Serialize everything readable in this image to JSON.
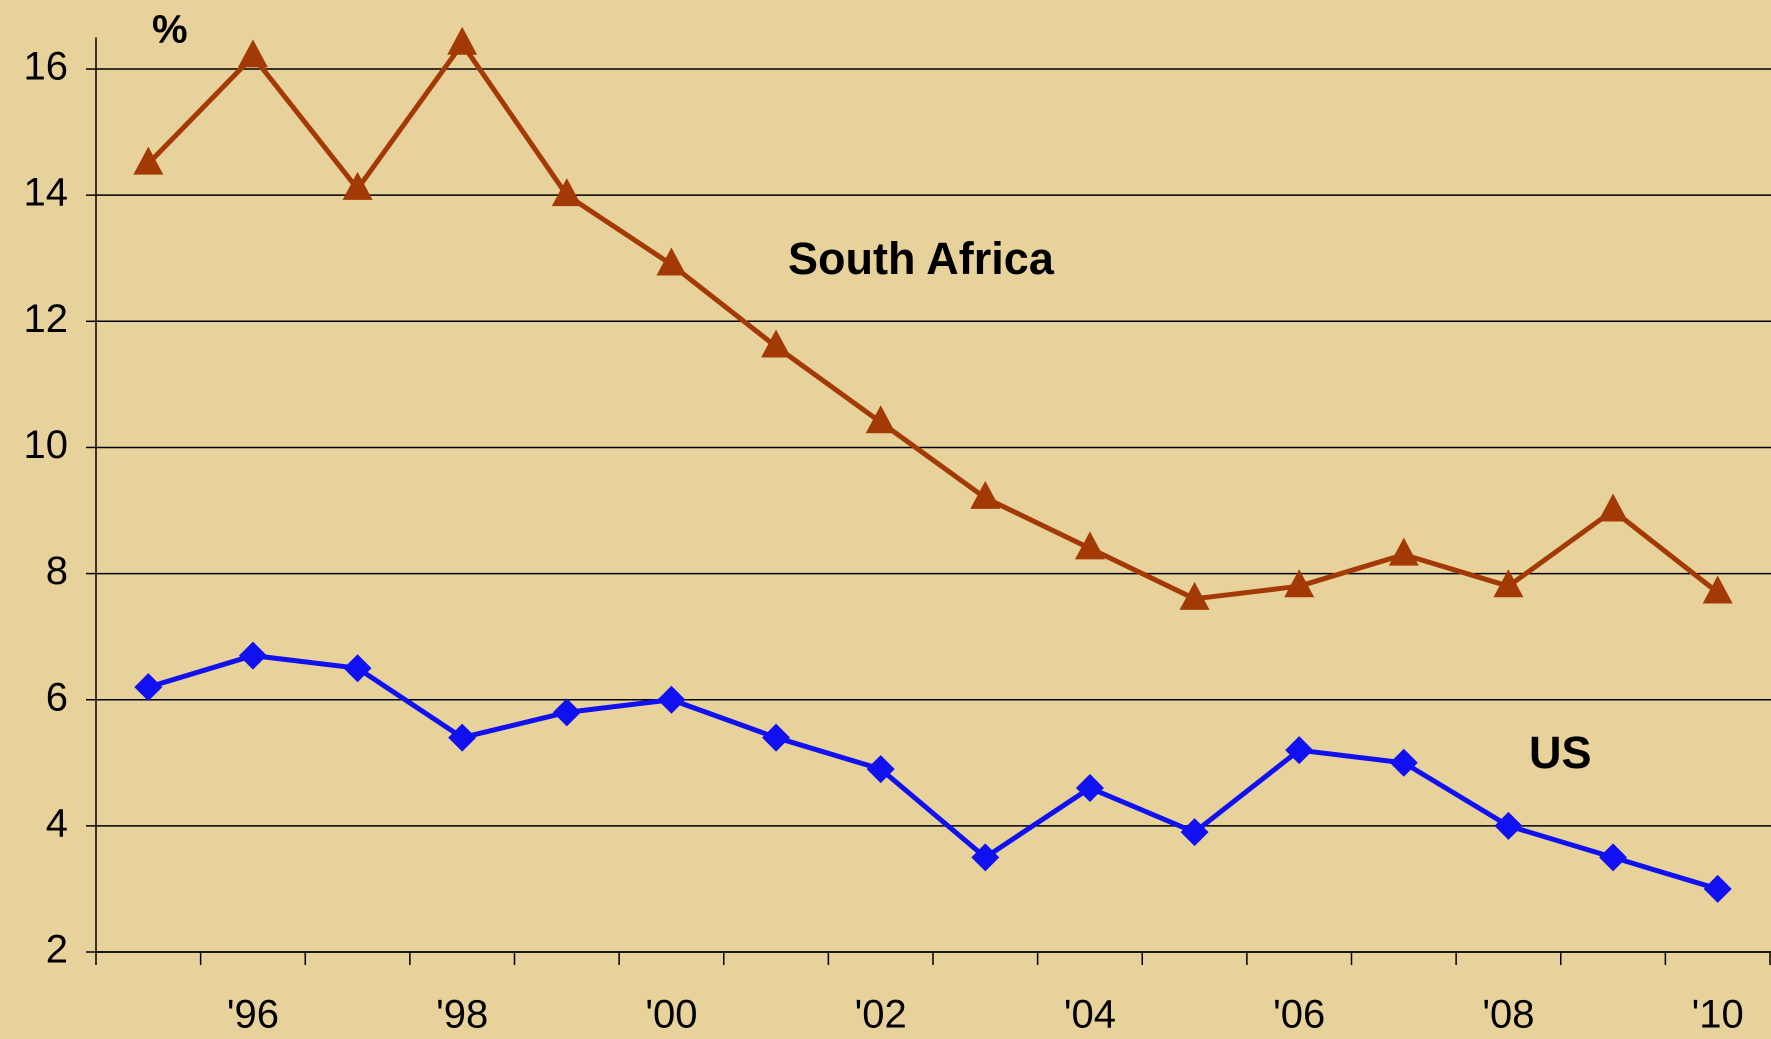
{
  "chart_data": {
    "type": "line",
    "y_label": "%",
    "categories": [
      null,
      "'96",
      null,
      "'98",
      null,
      "'00",
      null,
      "'02",
      null,
      "'04",
      null,
      "'06",
      null,
      "'08",
      null,
      "'10"
    ],
    "series": [
      {
        "name": "South Africa",
        "color": "#a33a06",
        "marker": "triangle",
        "values": [
          14.5,
          16.2,
          14.1,
          16.4,
          14.0,
          12.9,
          11.6,
          10.4,
          9.2,
          8.4,
          7.6,
          7.8,
          8.3,
          7.8,
          9.0,
          7.7
        ]
      },
      {
        "name": "US",
        "color": "#1010f0",
        "marker": "diamond",
        "values": [
          6.2,
          6.7,
          6.5,
          5.4,
          5.8,
          6.0,
          5.4,
          4.9,
          3.5,
          4.6,
          3.9,
          5.2,
          5.0,
          4.0,
          3.5,
          3.0
        ]
      }
    ],
    "ylim": [
      2,
      16.5
    ],
    "yticks": [
      2,
      4,
      6,
      8,
      10,
      12,
      14,
      16
    ],
    "grid": true
  }
}
